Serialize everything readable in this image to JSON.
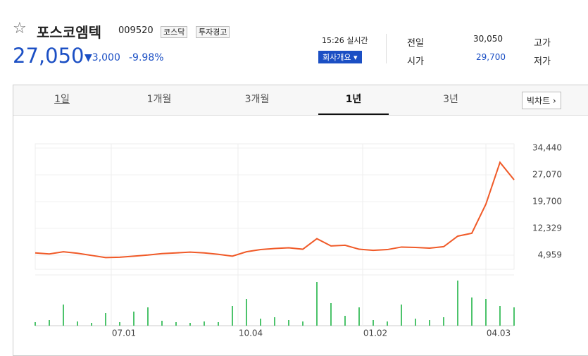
{
  "header": {
    "name": "포스코엠텍",
    "code": "009520",
    "badges": [
      "코스닥",
      "투자경고"
    ],
    "price": "27,050",
    "change": "3,000",
    "change_pct": "-9.98%",
    "time": "15:26 실시간",
    "button": "회사개요",
    "info": [
      [
        "전일",
        "30,050",
        "고가"
      ],
      [
        "시가",
        "29,700",
        "저가"
      ]
    ]
  },
  "tabs": [
    "1일",
    "1개월",
    "3개월",
    "1년",
    "3년"
  ],
  "active_tab": 3,
  "big_chart": "빅차트",
  "chart_data": {
    "type": "line",
    "color": "#f05a28",
    "ylim": [
      4959,
      34440
    ],
    "yticks": [
      {
        "value": 34440,
        "label": "34,440"
      },
      {
        "value": 27070,
        "label": "27,070"
      },
      {
        "value": 19700,
        "label": "19,700"
      },
      {
        "value": 12329,
        "label": "12,329"
      },
      {
        "value": 4959,
        "label": "4,959"
      }
    ],
    "xlabels": [
      "07.01",
      "10.04",
      "01.02",
      "04.03"
    ],
    "values": [
      5600,
      5300,
      5900,
      5500,
      4900,
      4300,
      4400,
      4700,
      5000,
      5400,
      5600,
      5800,
      5600,
      5200,
      4700,
      5900,
      6500,
      6800,
      7000,
      6600,
      9500,
      7500,
      7700,
      6600,
      6300,
      6500,
      7200,
      7100,
      6900,
      7300,
      10200,
      11000,
      19000,
      30500,
      25700
    ],
    "volume": [
      5,
      8,
      30,
      6,
      4,
      18,
      5,
      20,
      26,
      7,
      5,
      4,
      6,
      5,
      28,
      38,
      10,
      12,
      8,
      6,
      62,
      32,
      14,
      26,
      8,
      6,
      30,
      10,
      8,
      12,
      64,
      40,
      38,
      28,
      26
    ],
    "volume_color": "#4cc36b"
  }
}
